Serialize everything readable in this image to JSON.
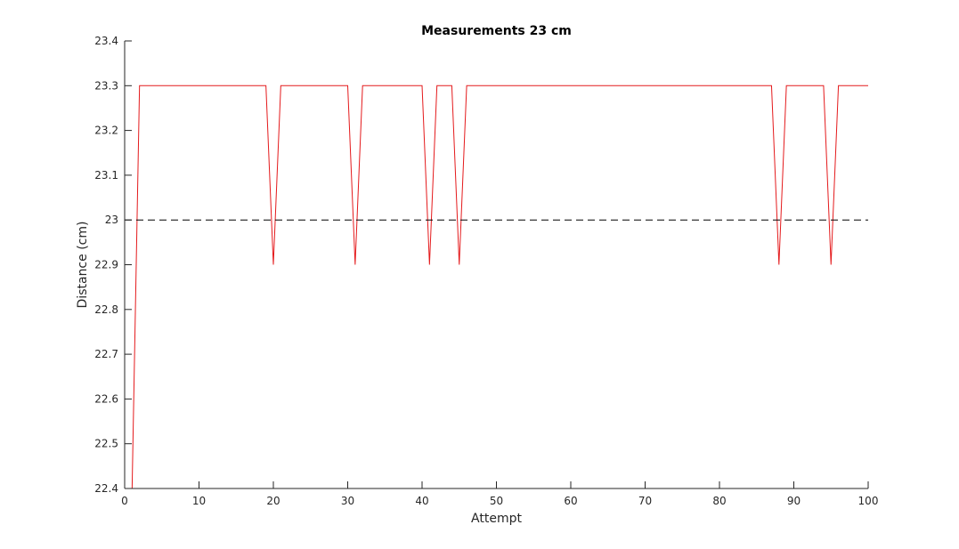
{
  "chart_data": {
    "type": "line",
    "title": "Measurements 23 cm",
    "xlabel": "Attempt",
    "ylabel": "Distance (cm)",
    "xlim": [
      0,
      100
    ],
    "ylim": [
      22.4,
      23.4
    ],
    "xticks": [
      0,
      10,
      20,
      30,
      40,
      50,
      60,
      70,
      80,
      90,
      100
    ],
    "xtick_labels": [
      "0",
      "10",
      "20",
      "30",
      "40",
      "50",
      "60",
      "70",
      "80",
      "90",
      "100"
    ],
    "yticks": [
      22.4,
      22.5,
      22.6,
      22.7,
      22.8,
      22.9,
      23.0,
      23.1,
      23.2,
      23.3,
      23.4
    ],
    "ytick_labels": [
      "22.4",
      "22.5",
      "22.6",
      "22.7",
      "22.8",
      "22.9",
      "23",
      "23.1",
      "23.2",
      "23.3",
      "23.4"
    ],
    "grid": false,
    "series": [
      {
        "color": "#e41a1c",
        "style": "solid",
        "x": [
          1,
          2,
          19,
          20,
          21,
          30,
          31,
          32,
          40,
          41,
          42,
          44,
          45,
          46,
          87,
          88,
          89,
          94,
          95,
          96,
          100
        ],
        "y": [
          22.4,
          23.3,
          23.3,
          22.9,
          23.3,
          23.3,
          22.9,
          23.3,
          23.3,
          22.9,
          23.3,
          23.3,
          22.9,
          23.3,
          23.3,
          22.9,
          23.3,
          23.3,
          22.9,
          23.3,
          23.3
        ]
      },
      {
        "color": "#000000",
        "style": "dashed",
        "x": [
          0,
          100
        ],
        "y": [
          23.0,
          23.0
        ]
      }
    ]
  }
}
